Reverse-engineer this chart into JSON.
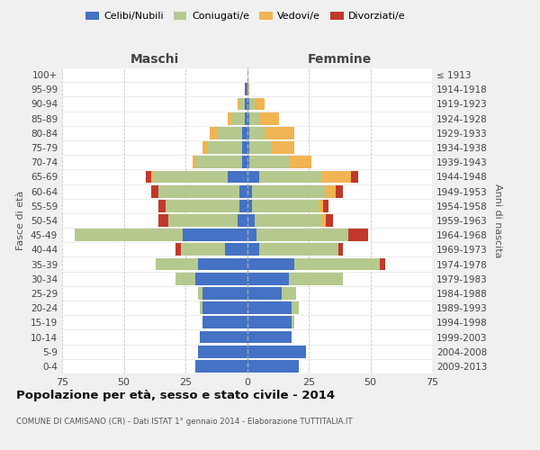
{
  "age_groups": [
    "0-4",
    "5-9",
    "10-14",
    "15-19",
    "20-24",
    "25-29",
    "30-34",
    "35-39",
    "40-44",
    "45-49",
    "50-54",
    "55-59",
    "60-64",
    "65-69",
    "70-74",
    "75-79",
    "80-84",
    "85-89",
    "90-94",
    "95-99",
    "100+"
  ],
  "birth_years": [
    "2009-2013",
    "2004-2008",
    "1999-2003",
    "1994-1998",
    "1989-1993",
    "1984-1988",
    "1979-1983",
    "1974-1978",
    "1969-1973",
    "1964-1968",
    "1959-1963",
    "1954-1958",
    "1949-1953",
    "1944-1948",
    "1939-1943",
    "1934-1938",
    "1929-1933",
    "1924-1928",
    "1919-1923",
    "1914-1918",
    "≤ 1913"
  ],
  "male": {
    "celibi": [
      21,
      20,
      19,
      18,
      18,
      18,
      21,
      20,
      9,
      26,
      4,
      3,
      3,
      8,
      2,
      2,
      2,
      1,
      1,
      1,
      0
    ],
    "coniugati": [
      0,
      0,
      0,
      0,
      1,
      2,
      8,
      17,
      18,
      44,
      28,
      30,
      33,
      30,
      19,
      14,
      10,
      5,
      2,
      0,
      0
    ],
    "vedovi": [
      0,
      0,
      0,
      0,
      0,
      0,
      0,
      0,
      0,
      0,
      0,
      0,
      0,
      1,
      1,
      2,
      3,
      2,
      1,
      0,
      0
    ],
    "divorziati": [
      0,
      0,
      0,
      0,
      0,
      0,
      0,
      0,
      2,
      0,
      4,
      3,
      3,
      2,
      0,
      0,
      0,
      0,
      0,
      0,
      0
    ]
  },
  "female": {
    "nubili": [
      21,
      24,
      18,
      18,
      18,
      14,
      17,
      19,
      5,
      4,
      3,
      2,
      2,
      5,
      1,
      1,
      1,
      1,
      1,
      0,
      0
    ],
    "coniugate": [
      0,
      0,
      0,
      1,
      3,
      6,
      22,
      35,
      32,
      37,
      27,
      27,
      30,
      25,
      16,
      9,
      6,
      4,
      2,
      0,
      0
    ],
    "vedove": [
      0,
      0,
      0,
      0,
      0,
      0,
      0,
      0,
      0,
      0,
      2,
      2,
      4,
      12,
      9,
      9,
      12,
      8,
      4,
      1,
      0
    ],
    "divorziate": [
      0,
      0,
      0,
      0,
      0,
      0,
      0,
      2,
      2,
      8,
      3,
      2,
      3,
      3,
      0,
      0,
      0,
      0,
      0,
      0,
      0
    ]
  },
  "colors": {
    "celibi_nubili": "#4472c4",
    "coniugati": "#b5c98e",
    "vedovi": "#f0b452",
    "divorziati": "#c0392b"
  },
  "xlim": 75,
  "title": "Popolazione per età, sesso e stato civile - 2014",
  "subtitle": "COMUNE DI CAMISANO (CR) - Dati ISTAT 1° gennaio 2014 - Elaborazione TUTTITALIA.IT",
  "xlabel_left": "Maschi",
  "xlabel_right": "Femmine",
  "ylabel_left": "Fasce di età",
  "ylabel_right": "Anni di nascita",
  "bg_color": "#f0f0f0",
  "plot_bg_color": "#ffffff"
}
